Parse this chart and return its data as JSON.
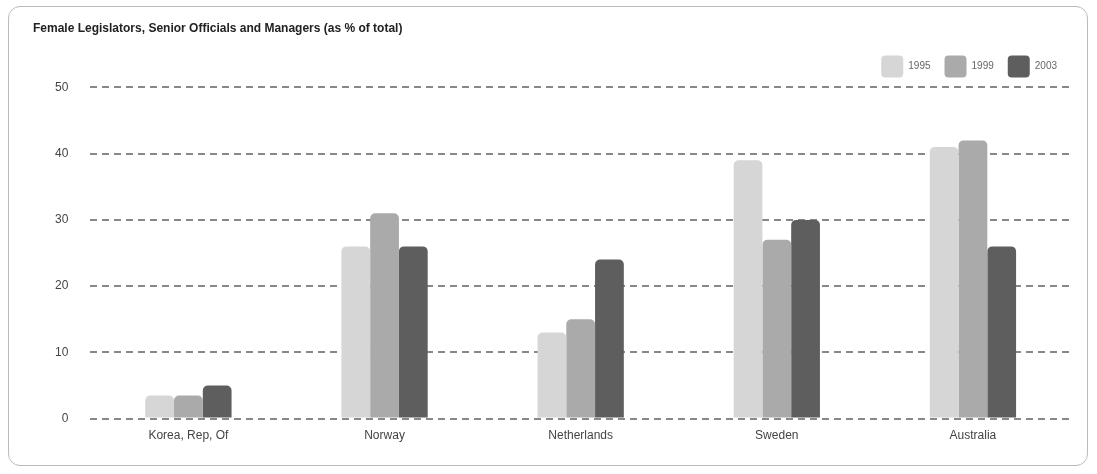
{
  "chart_data": {
    "type": "bar",
    "title": "Female Legislators, Senior Officials and Managers (as % of total)",
    "categories": [
      "Korea, Rep, Of",
      "Norway",
      "Netherlands",
      "Sweden",
      "Australia"
    ],
    "series": [
      {
        "name": "1995",
        "color": "#d6d6d6",
        "values": [
          3.5,
          26,
          13,
          39,
          41
        ]
      },
      {
        "name": "1999",
        "color": "#aaaaaa",
        "values": [
          3.5,
          31,
          15,
          27,
          42
        ]
      },
      {
        "name": "2003",
        "color": "#5e5e5e",
        "values": [
          5,
          26,
          24,
          30,
          26
        ]
      }
    ],
    "ylim": [
      0,
      50
    ],
    "yticks": [
      0,
      10,
      20,
      30,
      40,
      50
    ],
    "grid": "y",
    "legend": "top right"
  }
}
